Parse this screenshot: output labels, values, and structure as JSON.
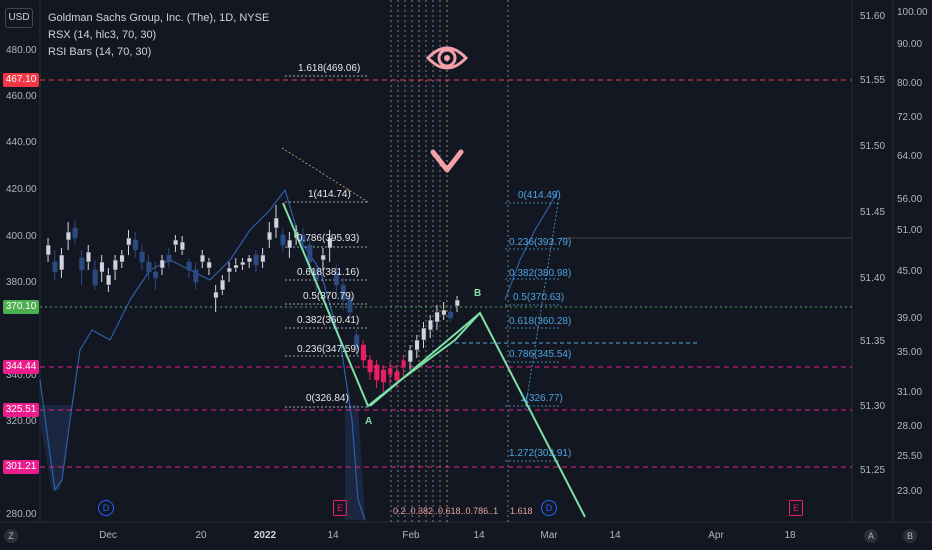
{
  "legend": {
    "symbol_line": "Goldman Sachs Group, Inc. (The), 1D, NYSE",
    "indicator1": "RSX (14, hlc3, 70, 30)",
    "indicator2": "RSI Bars (14, 70, 30)"
  },
  "currency_badge": "USD",
  "left_axis": [
    "480.00",
    "460.00",
    "440.00",
    "420.00",
    "400.00",
    "380.00",
    "340.00",
    "320.00",
    "280.00"
  ],
  "middle_axis": [
    "51.60",
    "51.55",
    "51.50",
    "51.45",
    "51.40",
    "51.35",
    "51.30",
    "51.25"
  ],
  "right_axis": [
    "100.00",
    "90.00",
    "80.00",
    "72.00",
    "64.00",
    "56.00",
    "51.00",
    "45.00",
    "39.00",
    "35.00",
    "31.00",
    "28.00",
    "25.50",
    "23.00"
  ],
  "price_tags": [
    {
      "label": "467.10",
      "color": "#f23645"
    },
    {
      "label": "370.10",
      "color": "#4caf50"
    },
    {
      "label": "344.44",
      "color": "#e91e8c"
    },
    {
      "label": "325.51",
      "color": "#e91e8c"
    },
    {
      "label": "301.21",
      "color": "#e91e8c"
    }
  ],
  "time_axis": [
    {
      "label": "Dec",
      "bold": false
    },
    {
      "label": "20",
      "bold": false
    },
    {
      "label": "2022",
      "bold": true
    },
    {
      "label": "14",
      "bold": false
    },
    {
      "label": "Feb",
      "bold": false
    },
    {
      "label": "14",
      "bold": false
    },
    {
      "label": "Mar",
      "bold": false
    },
    {
      "label": "14",
      "bold": false
    },
    {
      "label": "Apr",
      "bold": false
    },
    {
      "label": "18",
      "bold": false
    }
  ],
  "fib_left": [
    {
      "label": "1.618(469.06)"
    },
    {
      "label": "1(414.74)"
    },
    {
      "label": "0.786(395.93)"
    },
    {
      "label": "0.618(381.16)"
    },
    {
      "label": "0.5(370.79)"
    },
    {
      "label": "0.382(360.41)"
    },
    {
      "label": "0.236(347.59)"
    },
    {
      "label": "0(326.84)"
    }
  ],
  "fib_right": [
    {
      "label": "0(414.49)"
    },
    {
      "label": "0.236(393.79)"
    },
    {
      "label": "0.382(380.98)"
    },
    {
      "label": "0.5(370.63)"
    },
    {
      "label": "0.618(360.28)"
    },
    {
      "label": "0.786(345.54)"
    },
    {
      "label": "1(326.77)"
    },
    {
      "label": "1.272(302.91)"
    }
  ],
  "wave_labels": {
    "a": "A",
    "b": "B"
  },
  "events": {
    "dividend1": "D",
    "earnings1": "E",
    "dividend2": "D",
    "earnings2": "E"
  },
  "bottom_notes": {
    "left": "0.2..0.382..0.618..0.786..1",
    "right": "1.618"
  },
  "corner_buttons": {
    "left": "Z",
    "right_a": "A",
    "right_b": "B"
  },
  "colors": {
    "background": "#131722",
    "up_candle": "#d1d4dc",
    "down_candle": "#2a4a80",
    "oversold_candle": "#e91e63",
    "wave_line": "#7ee0a6",
    "fib_line_left": "#e8e8e8",
    "fib_line_right": "#4fa3e0",
    "red_level": "#f23645",
    "pink_level": "#e91e8c",
    "eye_icon": "#f4a0a8"
  }
}
